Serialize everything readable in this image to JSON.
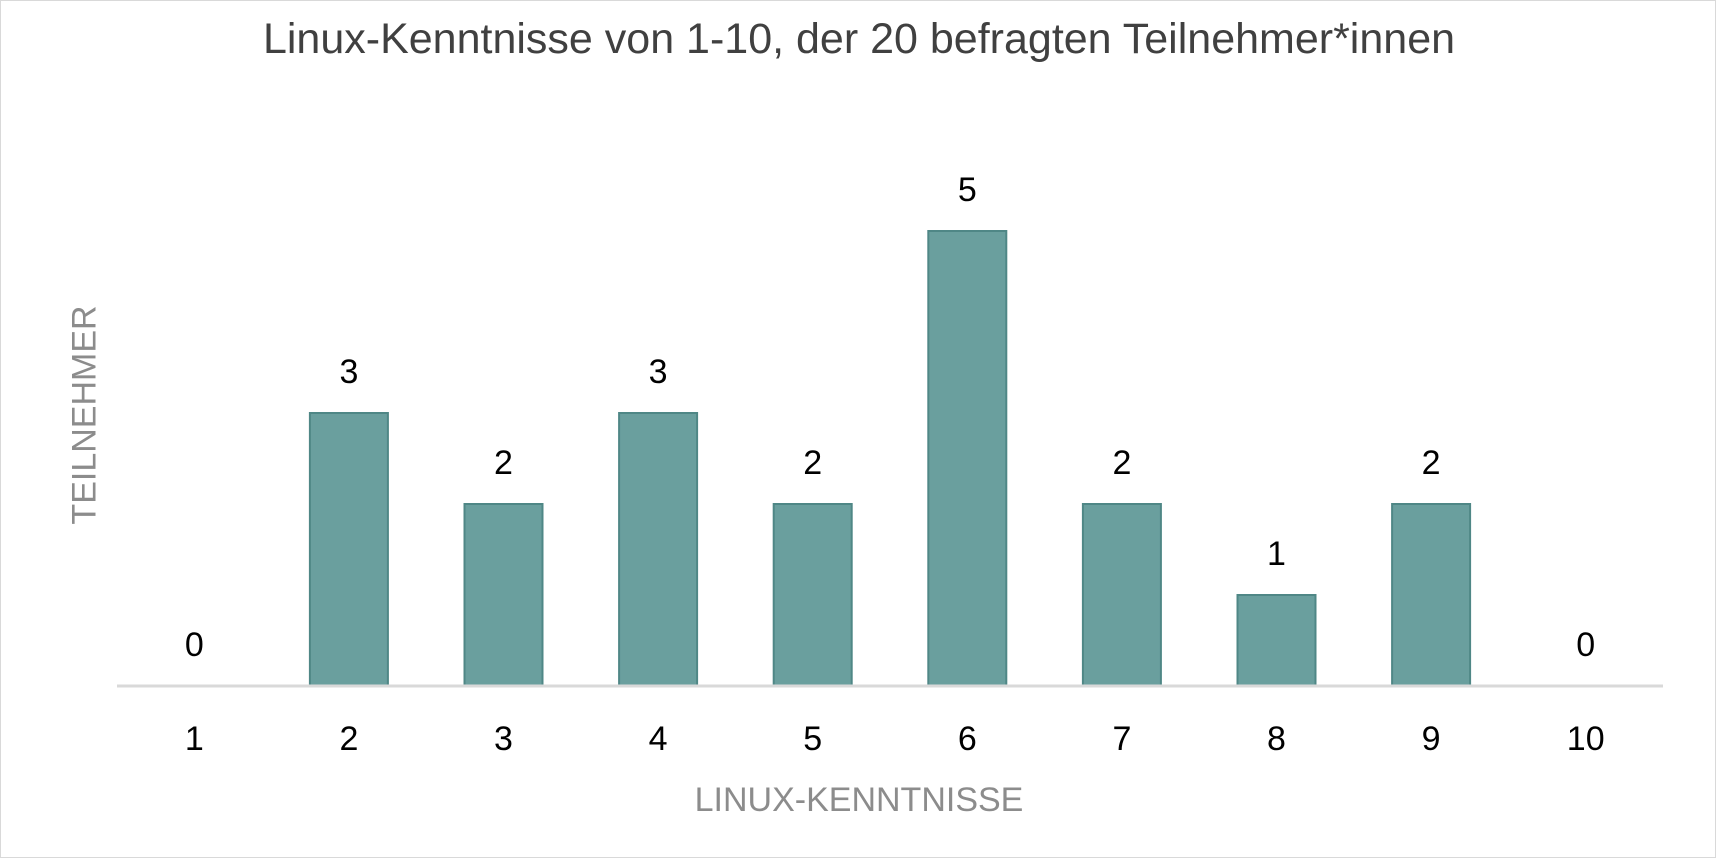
{
  "chart_data": {
    "type": "bar",
    "title": "Linux-Kenntnisse von 1-10, der 20 befragten Teilnehmer*innen",
    "xlabel": "LINUX-KENNTNISSE",
    "ylabel": "TEILNEHMER",
    "categories": [
      "1",
      "2",
      "3",
      "4",
      "5",
      "6",
      "7",
      "8",
      "9",
      "10"
    ],
    "values": [
      0,
      3,
      2,
      3,
      2,
      5,
      2,
      1,
      2,
      0
    ],
    "ylim": [
      0,
      6
    ],
    "grid": false,
    "legend": "none",
    "bar_color": "#6a9f9e",
    "bar_edge_color": "#4f8786"
  }
}
